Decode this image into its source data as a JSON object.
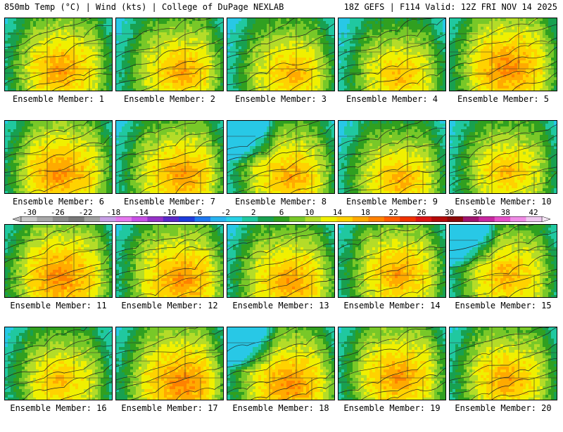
{
  "header": {
    "left": "850mb Temp (°C) | Wind (kts) | College of DuPage NEXLAB",
    "right": "18Z GEFS | F114 Valid: 12Z FRI NOV 14 2025"
  },
  "panels": [
    {
      "label": "Ensemble Member: 1"
    },
    {
      "label": "Ensemble Member: 2"
    },
    {
      "label": "Ensemble Member: 3"
    },
    {
      "label": "Ensemble Member: 4"
    },
    {
      "label": "Ensemble Member: 5"
    },
    {
      "label": "Ensemble Member: 6"
    },
    {
      "label": "Ensemble Member: 7"
    },
    {
      "label": "Ensemble Member: 8"
    },
    {
      "label": "Ensemble Member: 9"
    },
    {
      "label": "Ensemble Member: 10"
    },
    {
      "label": "Ensemble Member: 11"
    },
    {
      "label": "Ensemble Member: 12"
    },
    {
      "label": "Ensemble Member: 13"
    },
    {
      "label": "Ensemble Member: 14"
    },
    {
      "label": "Ensemble Member: 15"
    },
    {
      "label": "Ensemble Member: 16"
    },
    {
      "label": "Ensemble Member: 17"
    },
    {
      "label": "Ensemble Member: 18"
    },
    {
      "label": "Ensemble Member: 19"
    },
    {
      "label": "Ensemble Member: 20"
    }
  ],
  "colorbar": {
    "ticks": [
      "-30",
      "-26",
      "-22",
      "-18",
      "-14",
      "-10",
      "-6",
      "-2",
      "2",
      "6",
      "10",
      "14",
      "18",
      "22",
      "26",
      "30",
      "34",
      "38",
      "42"
    ],
    "colors": [
      "#c8c8c8",
      "#a8a8a8",
      "#8c8c8c",
      "#787878",
      "#a0a0a0",
      "#c8a0e6",
      "#e678f0",
      "#c850e6",
      "#9632c8",
      "#5a28c8",
      "#1e3cdc",
      "#1e78f0",
      "#28b4f0",
      "#28d2e6",
      "#20c8a0",
      "#18a050",
      "#30a020",
      "#78c828",
      "#b4dc28",
      "#f0f000",
      "#ffd200",
      "#ffaa00",
      "#ff8200",
      "#ff5a00",
      "#f03200",
      "#dc1414",
      "#b40a0a",
      "#8c0a0a",
      "#a0146e",
      "#c828a0",
      "#e650c8",
      "#f08ce6",
      "#f0c8f0"
    ]
  }
}
